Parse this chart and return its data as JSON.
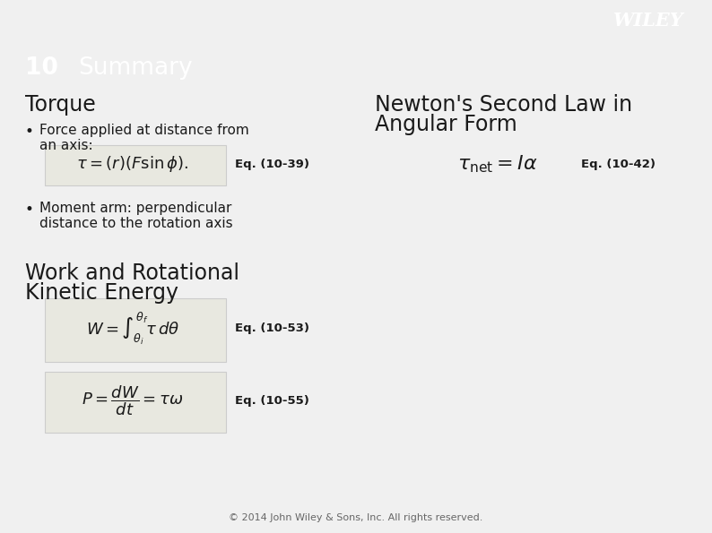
{
  "header_bg_color": "#3d5a73",
  "body_bg_color": "#f0f0f0",
  "slide_number": "10",
  "slide_title": "Summary",
  "wiley_text": "WILEY",
  "wiley_color": "#ffffff",
  "torque_title": "Torque",
  "newton_title_line1": "Newton's Second Law in",
  "newton_title_line2": "Angular Form",
  "bullet1_line1": "Force applied at distance from",
  "bullet1_line2": "an axis:",
  "eq1_label": "Eq. (10-39)",
  "bullet2_line1": "Moment arm: perpendicular",
  "bullet2_line2": "distance to the rotation axis",
  "eq2_label": "Eq. (10-42)",
  "work_title_line1": "Work and Rotational",
  "work_title_line2": "Kinetic Energy",
  "eq3_label": "Eq. (10-53)",
  "eq4_label": "Eq. (10-55)",
  "footer_text": "© 2014 John Wiley & Sons, Inc. All rights reserved.",
  "formula_box_color": "#e8e8e0",
  "body_text_color": "#1a1a1a",
  "separator_line_color": "#4a7a5a"
}
